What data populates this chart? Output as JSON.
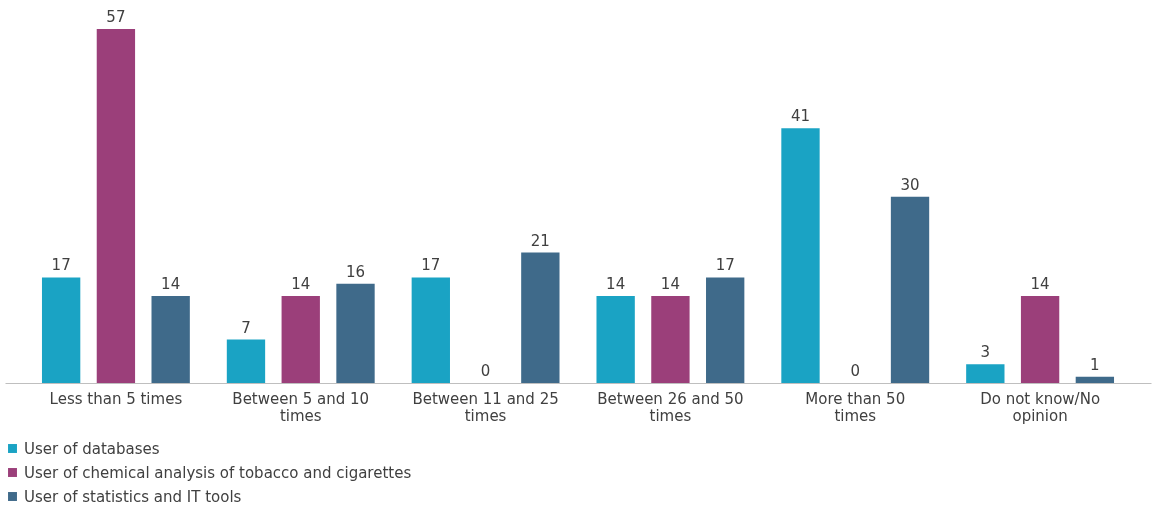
{
  "chart_data": {
    "type": "bar",
    "categories": [
      "Less than 5 times",
      "Between 5 and 10 times",
      "Between 11 and 25 times",
      "Between 26 and 50 times",
      "More than 50 times",
      "Do not know/No opinion"
    ],
    "series": [
      {
        "name": "User of databases",
        "color": "#1aa3c4",
        "values": [
          17,
          7,
          17,
          14,
          41,
          3
        ]
      },
      {
        "name": "User of chemical analysis of tobacco and cigarettes",
        "color": "#9b3f7a",
        "values": [
          57,
          14,
          0,
          14,
          0,
          14
        ]
      },
      {
        "name": "User of statistics and IT tools",
        "color": "#3f6a8a",
        "values": [
          14,
          16,
          21,
          17,
          30,
          1
        ]
      }
    ],
    "data_labels": true,
    "legend": "bottom",
    "grid": false
  }
}
